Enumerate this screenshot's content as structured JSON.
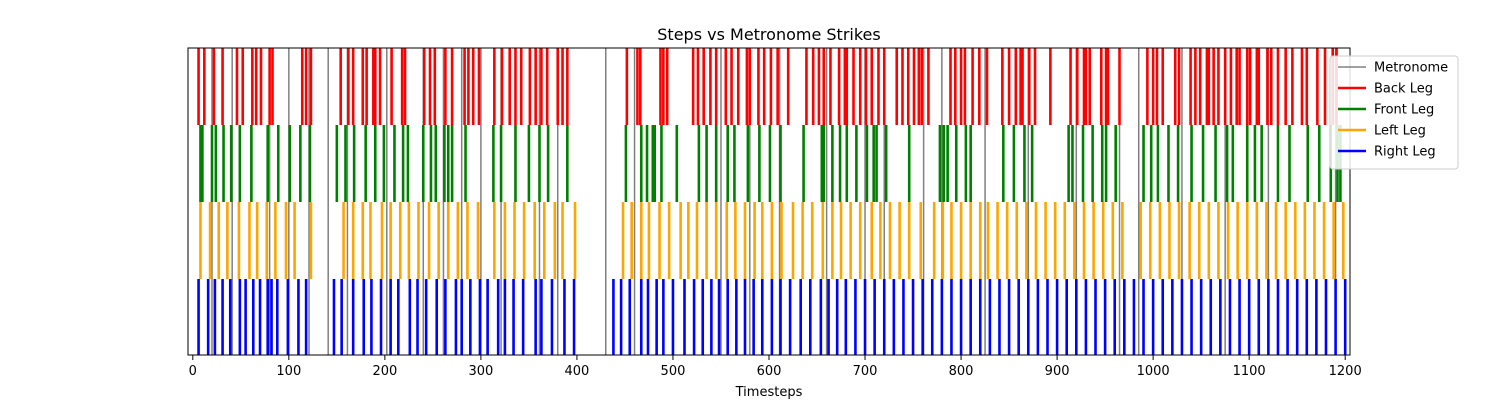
{
  "chart_data": {
    "type": "event-lines",
    "title": "Steps vs Metronome Strikes",
    "xlabel": "Timesteps",
    "ylabel": "",
    "xlim": [
      -5,
      1205
    ],
    "xticks": [
      0,
      100,
      200,
      300,
      400,
      500,
      600,
      700,
      800,
      900,
      1000,
      1100,
      1200
    ],
    "legend_position": "upper-right",
    "series": [
      {
        "name": "Metronome",
        "color": "#808080",
        "band": "full",
        "events": [
          20,
          41,
          80,
          100,
          121,
          141,
          161,
          202,
          240,
          261,
          280,
          300,
          321,
          361,
          380,
          430,
          460,
          550,
          580,
          611,
          660,
          700,
          720,
          761,
          780,
          825,
          870,
          920,
          965,
          985,
          1030,
          1075,
          1120,
          1190
        ]
      },
      {
        "name": "Back Leg",
        "color": "#ff0000",
        "band": "top",
        "events": [
          6,
          12,
          22,
          31,
          46,
          52,
          62,
          66,
          71,
          80,
          83,
          114,
          118,
          123,
          154,
          162,
          167,
          177,
          181,
          188,
          190,
          195,
          207,
          218,
          221,
          241,
          247,
          252,
          263,
          270,
          283,
          287,
          292,
          298,
          314,
          322,
          330,
          336,
          342,
          351,
          357,
          363,
          369,
          380,
          385,
          390,
          452,
          463,
          466,
          487,
          490,
          494,
          521,
          526,
          532,
          539,
          545,
          555,
          561,
          568,
          577,
          580,
          589,
          595,
          602,
          609,
          620,
          639,
          646,
          652,
          657,
          664,
          673,
          679,
          681,
          688,
          695,
          701,
          707,
          714,
          720,
          733,
          739,
          745,
          751,
          756,
          759,
          766,
          789,
          794,
          800,
          804,
          812,
          819,
          827,
          843,
          850,
          857,
          862,
          864,
          871,
          877,
          893,
          914,
          921,
          928,
          930,
          934,
          946,
          951,
          953,
          965,
          994,
          1000,
          1004,
          1010,
          1023,
          1027,
          1039,
          1044,
          1049,
          1056,
          1058,
          1063,
          1068,
          1075,
          1081,
          1087,
          1090,
          1098,
          1101,
          1108,
          1110,
          1119,
          1123,
          1130,
          1138,
          1145,
          1155,
          1160,
          1171,
          1179,
          1187,
          1191
        ]
      },
      {
        "name": "Front Leg",
        "color": "#008000",
        "band": "upper-middle",
        "events": [
          8,
          10,
          20,
          24,
          32,
          40,
          49,
          61,
          78,
          89,
          101,
          112,
          122,
          150,
          159,
          168,
          180,
          190,
          199,
          210,
          219,
          224,
          240,
          248,
          253,
          262,
          266,
          270,
          284,
          313,
          321,
          336,
          350,
          361,
          370,
          390,
          451,
          467,
          473,
          479,
          481,
          488,
          504,
          527,
          535,
          545,
          557,
          564,
          578,
          590,
          601,
          612,
          636,
          655,
          657,
          666,
          674,
          681,
          691,
          702,
          709,
          712,
          722,
          746,
          778,
          782,
          786,
          795,
          805,
          810,
          844,
          855,
          866,
          874,
          912,
          916,
          927,
          937,
          947,
          951,
          961,
          990,
          998,
          1005,
          1016,
          1026,
          1040,
          1052,
          1065,
          1077,
          1083,
          1098,
          1106,
          1113,
          1130,
          1142,
          1161,
          1173,
          1185,
          1192,
          1195
        ]
      },
      {
        "name": "Left Leg",
        "color": "#ffa500",
        "band": "lower-middle",
        "events": [
          8,
          18,
          27,
          36,
          48,
          59,
          67,
          77,
          86,
          97,
          106,
          123,
          157,
          167,
          177,
          185,
          197,
          206,
          216,
          225,
          235,
          246,
          256,
          266,
          276,
          286,
          297,
          314,
          325,
          335,
          345,
          356,
          366,
          377,
          385,
          398,
          448,
          457,
          467,
          475,
          486,
          496,
          508,
          516,
          525,
          535,
          545,
          556,
          565,
          575,
          585,
          593,
          603,
          613,
          625,
          635,
          645,
          656,
          666,
          675,
          685,
          695,
          707,
          716,
          726,
          736,
          746,
          758,
          772,
          781,
          790,
          800,
          810,
          820,
          828,
          838,
          848,
          858,
          868,
          878,
          888,
          898,
          908,
          918,
          928,
          938,
          948,
          958,
          968,
          987,
          997,
          1007,
          1017,
          1027,
          1038,
          1048,
          1058,
          1068,
          1078,
          1088,
          1098,
          1108,
          1118,
          1128,
          1138,
          1148,
          1158,
          1168,
          1178,
          1188,
          1198
        ]
      },
      {
        "name": "Right Leg",
        "color": "#0000ff",
        "band": "bottom",
        "events": [
          6,
          16,
          23,
          31,
          39,
          49,
          55,
          63,
          70,
          78,
          82,
          88,
          99,
          110,
          118,
          147,
          155,
          167,
          178,
          186,
          196,
          206,
          214,
          226,
          234,
          243,
          254,
          263,
          274,
          280,
          289,
          299,
          307,
          318,
          325,
          334,
          344,
          357,
          363,
          374,
          387,
          397,
          438,
          446,
          455,
          467,
          474,
          483,
          490,
          500,
          512,
          522,
          531,
          540,
          548,
          557,
          566,
          575,
          584,
          593,
          603,
          612,
          622,
          633,
          643,
          654,
          662,
          671,
          680,
          690,
          700,
          710,
          720,
          730,
          740,
          750,
          760,
          770,
          780,
          790,
          800,
          810,
          820,
          830,
          840,
          850,
          860,
          870,
          880,
          890,
          900,
          910,
          920,
          930,
          940,
          950,
          960,
          970,
          980,
          990,
          1000,
          1010,
          1020,
          1030,
          1040,
          1050,
          1060,
          1070,
          1080,
          1090,
          1100,
          1110,
          1120,
          1130,
          1140,
          1150,
          1160,
          1170,
          1180,
          1190,
          1200
        ]
      }
    ]
  }
}
